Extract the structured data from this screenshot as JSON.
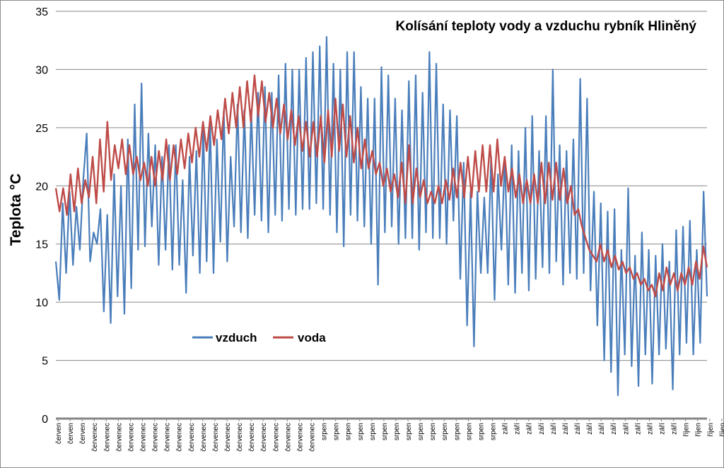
{
  "chart_data": {
    "type": "line",
    "title": "Kolísání teploty vody a vzduchu rybník Hliněný",
    "xlabel": "",
    "ylabel": "Teplota °C",
    "ylim": [
      0,
      35
    ],
    "yticks": [
      0,
      5,
      10,
      15,
      20,
      25,
      30,
      35
    ],
    "grid": "horizontal",
    "legend_position": "lower-left inside plot",
    "x_tick_labels": [
      "červen",
      "červen",
      "červen",
      "červenec",
      "červenec",
      "červenec",
      "červenec",
      "červenec",
      "červenec",
      "červenec",
      "červenec",
      "červenec",
      "červenec",
      "červenec",
      "červenec",
      "červenec",
      "červenec",
      "červenec",
      "červenec",
      "červenec",
      "červenec",
      "červenec",
      "srpen",
      "srpen",
      "srpen",
      "srpen",
      "srpen",
      "srpen",
      "srpen",
      "srpen",
      "srpen",
      "srpen",
      "srpen",
      "srpen",
      "srpen",
      "srpen",
      "srpen",
      "září",
      "září",
      "září",
      "září",
      "září",
      "září",
      "září",
      "září",
      "září",
      "září",
      "září",
      "září",
      "září",
      "září",
      "září",
      "říjen",
      "říjen",
      "říjen",
      "říjen"
    ],
    "series": [
      {
        "name": "vzduch",
        "color": "#4a7ebb",
        "values": [
          13.5,
          10.2,
          18.5,
          12.5,
          19.5,
          13.2,
          18.2,
          14.5,
          20.5,
          24.5,
          13.5,
          16,
          15,
          18,
          9.2,
          17.5,
          8.2,
          21,
          10.5,
          20,
          9,
          24,
          11.2,
          27,
          14.5,
          28.8,
          14.8,
          24.5,
          16.5,
          23.5,
          13.2,
          22.5,
          14.5,
          23.5,
          12.8,
          23.5,
          13.2,
          20.5,
          10.8,
          22.5,
          14,
          23,
          12.5,
          25,
          13.5,
          25.5,
          12.5,
          24,
          15.2,
          26.5,
          13.5,
          22.5,
          16.5,
          27,
          16,
          26.5,
          15.5,
          26.5,
          17.5,
          28,
          17,
          28.5,
          16,
          28,
          17.5,
          29.5,
          17,
          30.5,
          18,
          30,
          17.5,
          30,
          18,
          31,
          18,
          31.5,
          18.5,
          32,
          18,
          32.8,
          17.5,
          30.5,
          16,
          30,
          14.8,
          31.5,
          17.5,
          31.5,
          17,
          28.5,
          16.5,
          27.5,
          15,
          27.5,
          11.5,
          30.2,
          16,
          29.5,
          16.5,
          27.5,
          15,
          26.5,
          15.5,
          29,
          15.5,
          29.5,
          14.5,
          28,
          16,
          31.5,
          15.5,
          30.5,
          15.5,
          27,
          15,
          26.5,
          17,
          26,
          12,
          22,
          8,
          19.5,
          6.2,
          19.5,
          12.5,
          19,
          12.5,
          22.5,
          10.2,
          21,
          14.5,
          22.5,
          11.5,
          23.5,
          10.8,
          23,
          12.5,
          25,
          11,
          26,
          12,
          23,
          13,
          26,
          12.5,
          30,
          13.5,
          23.5,
          11.5,
          23,
          12.5,
          24,
          12,
          29.2,
          12.5,
          27.5,
          11,
          19.5,
          8,
          18.5,
          5,
          17.8,
          4,
          18,
          2,
          14.5,
          5.5,
          19.8,
          4.5,
          14,
          2.8,
          16,
          5.5,
          14.5,
          3,
          14,
          5.5,
          15,
          6,
          13.5,
          2.5,
          16.2,
          5.5,
          16.5,
          6.5,
          17,
          5.5,
          14.5,
          6.5,
          19.5,
          10.5
        ]
      },
      {
        "name": "voda",
        "color": "#be4b48",
        "values": [
          19.8,
          17.8,
          19.8,
          17.5,
          21,
          17.8,
          21.5,
          18.5,
          20.5,
          19,
          22.5,
          18.5,
          24,
          19.5,
          25.5,
          20.5,
          23.5,
          21.5,
          24,
          21,
          23.5,
          21,
          22.5,
          20.5,
          22,
          20,
          22.5,
          20,
          23,
          20.5,
          24,
          20.5,
          23.5,
          21,
          24,
          21.5,
          24.5,
          22,
          25,
          22.5,
          25.5,
          23,
          26,
          23.5,
          26.5,
          24,
          27.5,
          24.5,
          28,
          25,
          28.5,
          25,
          29,
          25.5,
          29.5,
          26,
          29,
          25.5,
          28,
          25,
          27.5,
          24.5,
          27,
          24,
          26.5,
          23.5,
          26,
          23,
          25.5,
          22.5,
          25.5,
          22.5,
          26,
          22,
          26.5,
          22.5,
          27.5,
          23,
          27,
          22.5,
          26,
          22,
          25,
          21.5,
          24,
          21.5,
          23,
          21,
          22,
          20,
          21.5,
          19.5,
          21,
          19,
          22,
          18.5,
          23.5,
          18.5,
          21.5,
          19,
          20.5,
          18.5,
          19.5,
          18.5,
          20,
          18.5,
          20.5,
          18.8,
          21.5,
          19,
          22,
          19,
          22.5,
          19,
          23,
          19.5,
          23.5,
          19.5,
          23.5,
          19.5,
          24,
          20,
          22.5,
          19.5,
          21.5,
          19,
          21,
          18.5,
          20.5,
          18.5,
          21,
          18.5,
          22,
          18.5,
          22,
          18.8,
          22,
          18.8,
          21.5,
          18.5,
          20,
          17.5,
          18,
          16.5,
          15.5,
          14.5,
          14,
          13.5,
          15,
          13.5,
          14.5,
          13,
          14,
          12.8,
          13.5,
          12.5,
          13,
          12,
          12.5,
          11.5,
          12,
          11,
          11.5,
          10.5,
          12.5,
          11,
          13,
          11.5,
          12.5,
          11,
          12.5,
          11.5,
          13,
          11.5,
          13.5,
          12,
          14.8,
          13
        ]
      }
    ]
  },
  "legend": {
    "items": [
      {
        "label": "vzduch",
        "color": "#4a7ebb"
      },
      {
        "label": "voda",
        "color": "#be4b48"
      }
    ]
  },
  "colors": {
    "gridline": "#868686",
    "axis": "#868686",
    "frame": "#8c8c8c"
  }
}
